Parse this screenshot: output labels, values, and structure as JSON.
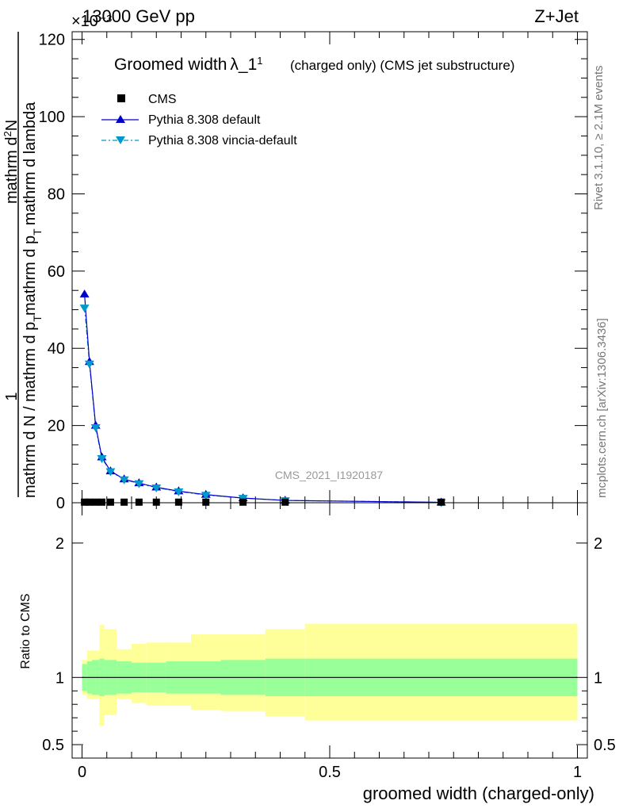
{
  "header": {
    "left": "13000 GeV pp",
    "right": "Z+Jet",
    "exponent": "×10⁻³"
  },
  "side_labels": {
    "rivet": "Rivet 3.1.10, ≥ 2.1M events",
    "mcplots": "mcplots.cern.ch [arXiv:1306.3436]"
  },
  "watermark": "CMS_2021_I1920187",
  "chart_data": {
    "type": "line",
    "title": "Groomed width λ_1¹",
    "title_parts": {
      "main": "Groomed width",
      "symbol": "λ_1",
      "sup": "1",
      "note": "(charged only) (CMS jet substructure)"
    },
    "xlabel": "groomed width (charged-only)",
    "ylabel": "1/(mathrm d N / mathrm d p_T) · mathrm d²N / (mathrm d p_T mathrm d lambda)",
    "ylabel_parts": {
      "num": "1",
      "den": "mathrm d N / mathrm d p",
      "den_sub": "T",
      "right_a": "mathrm d",
      "right_a_sup": "2",
      "right_a2": "N",
      "right_b": "mathrm d p",
      "right_b_sub": "T",
      "right_b2": "mathrm d lambda"
    },
    "ratio_ylabel": "Ratio to CMS",
    "xlim": [
      -0.02,
      1.02
    ],
    "ylim": [
      0,
      122
    ],
    "ratio_ylim": [
      0.4,
      2.3
    ],
    "x_ticks": [
      {
        "v": 0,
        "label": "0"
      },
      {
        "v": 0.5,
        "label": "0.5"
      },
      {
        "v": 1,
        "label": "1"
      }
    ],
    "y_ticks": [
      {
        "v": 0,
        "label": "0"
      },
      {
        "v": 20,
        "label": "20"
      },
      {
        "v": 40,
        "label": "40"
      },
      {
        "v": 60,
        "label": "60"
      },
      {
        "v": 80,
        "label": "80"
      },
      {
        "v": 100,
        "label": "100"
      },
      {
        "v": 120,
        "label": "120"
      }
    ],
    "ratio_ticks": [
      {
        "v": 0.5,
        "label": "0.5"
      },
      {
        "v": 1,
        "label": "1"
      },
      {
        "v": 2,
        "label": "2"
      }
    ],
    "legend_placement": "top-left",
    "bin_edges": [
      0,
      0.01,
      0.02,
      0.035,
      0.045,
      0.07,
      0.1,
      0.13,
      0.17,
      0.22,
      0.28,
      0.37,
      0.45,
      1.0
    ],
    "x": [
      0.005,
      0.015,
      0.0275,
      0.04,
      0.0575,
      0.085,
      0.115,
      0.15,
      0.195,
      0.25,
      0.325,
      0.41,
      0.725
    ],
    "series": [
      {
        "name": "CMS",
        "color": "#000000",
        "marker": "square",
        "values": [
          0.05,
          0.05,
          0.05,
          0.05,
          0.05,
          0.05,
          0.05,
          0.05,
          0.05,
          0.05,
          0.05,
          0.05,
          0.05
        ]
      },
      {
        "name": "Pythia 8.308 default",
        "color": "#0000cc",
        "marker": "triangle-up",
        "values": [
          54.0,
          36.5,
          20.0,
          11.8,
          8.2,
          6.1,
          5.1,
          4.0,
          3.0,
          2.1,
          1.2,
          0.6,
          0.1
        ]
      },
      {
        "name": "Pythia 8.308 vincia-default",
        "color": "#0099cc",
        "marker": "triangle-down",
        "values": [
          50.5,
          36.0,
          19.5,
          11.5,
          8.1,
          6.0,
          5.0,
          3.9,
          2.9,
          2.0,
          1.2,
          0.6,
          0.1
        ]
      }
    ],
    "ratio_band": {
      "inner_color": "#99ff99",
      "outer_color": "#ffff99",
      "inner_low": [
        0.9,
        0.88,
        0.87,
        0.86,
        0.87,
        0.88,
        0.89,
        0.89,
        0.88,
        0.88,
        0.87,
        0.86,
        0.86
      ],
      "inner_high": [
        1.1,
        1.12,
        1.13,
        1.14,
        1.13,
        1.12,
        1.11,
        1.11,
        1.12,
        1.12,
        1.13,
        1.14,
        1.14
      ],
      "outer_low": [
        0.87,
        0.84,
        0.84,
        0.64,
        0.72,
        0.84,
        0.81,
        0.79,
        0.79,
        0.76,
        0.75,
        0.71,
        0.68
      ],
      "outer_high": [
        1.13,
        1.2,
        1.2,
        1.39,
        1.36,
        1.21,
        1.25,
        1.26,
        1.26,
        1.32,
        1.32,
        1.36,
        1.4
      ]
    }
  }
}
